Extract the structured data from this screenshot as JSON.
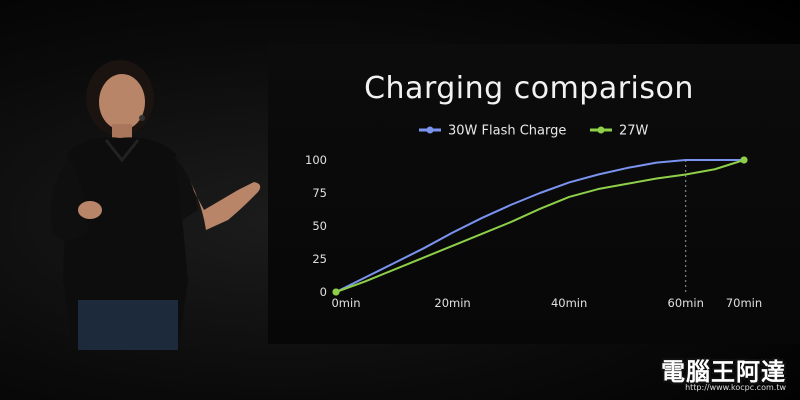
{
  "chart_data": {
    "type": "line",
    "title": "Charging comparison",
    "xlabel": "",
    "ylabel": "",
    "x_ticks": [
      {
        "label": "0min",
        "value": 0
      },
      {
        "label": "20min",
        "value": 20
      },
      {
        "label": "40min",
        "value": 40
      },
      {
        "label": "60min",
        "value": 60
      },
      {
        "label": "70min",
        "value": 70
      }
    ],
    "y_ticks": [
      0,
      25,
      50,
      75,
      100
    ],
    "xlim": [
      0,
      70
    ],
    "ylim": [
      0,
      100
    ],
    "legend_position": "top-center",
    "grid": false,
    "reference_line_x": 60,
    "series": [
      {
        "name": "30W Flash Charge",
        "color": "#7b93f0",
        "x": [
          0,
          5,
          10,
          15,
          20,
          25,
          30,
          35,
          40,
          45,
          50,
          55,
          60,
          65,
          70
        ],
        "y": [
          0,
          11,
          22,
          33,
          45,
          56,
          66,
          75,
          83,
          89,
          94,
          98,
          100,
          100,
          100
        ]
      },
      {
        "name": "27W",
        "color": "#8ecf4a",
        "x": [
          0,
          5,
          10,
          15,
          20,
          25,
          30,
          35,
          40,
          45,
          50,
          55,
          60,
          65,
          70
        ],
        "y": [
          0,
          8,
          17,
          26,
          35,
          44,
          53,
          63,
          72,
          78,
          82,
          86,
          89,
          93,
          100
        ]
      }
    ]
  },
  "watermark": {
    "text": "電腦王阿達",
    "url": "http://www.kocpc.com.tw"
  }
}
